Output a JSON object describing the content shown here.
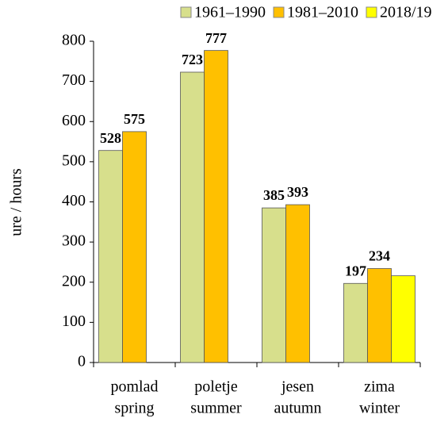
{
  "chart_data": {
    "type": "bar",
    "y_label": "ure / hours",
    "categories": [
      [
        "pomlad",
        "spring"
      ],
      [
        "poletje",
        "summer"
      ],
      [
        "jesen",
        "autumn"
      ],
      [
        "zima",
        "winter"
      ]
    ],
    "series": [
      {
        "name": "1961–1990",
        "color": "#d7df8c",
        "values": [
          528,
          723,
          385,
          197
        ],
        "show_labels": true
      },
      {
        "name": "1981–2010",
        "color": "#ffc000",
        "values": [
          575,
          777,
          393,
          234
        ],
        "show_labels": true
      },
      {
        "name": "2018/19",
        "color": "#ffff00",
        "values": [
          null,
          null,
          null,
          216
        ],
        "show_labels": false
      }
    ],
    "ylim": [
      0,
      800
    ],
    "yticks": [
      0,
      100,
      200,
      300,
      400,
      500,
      600,
      700,
      800
    ],
    "grid": false,
    "legend": "top"
  }
}
